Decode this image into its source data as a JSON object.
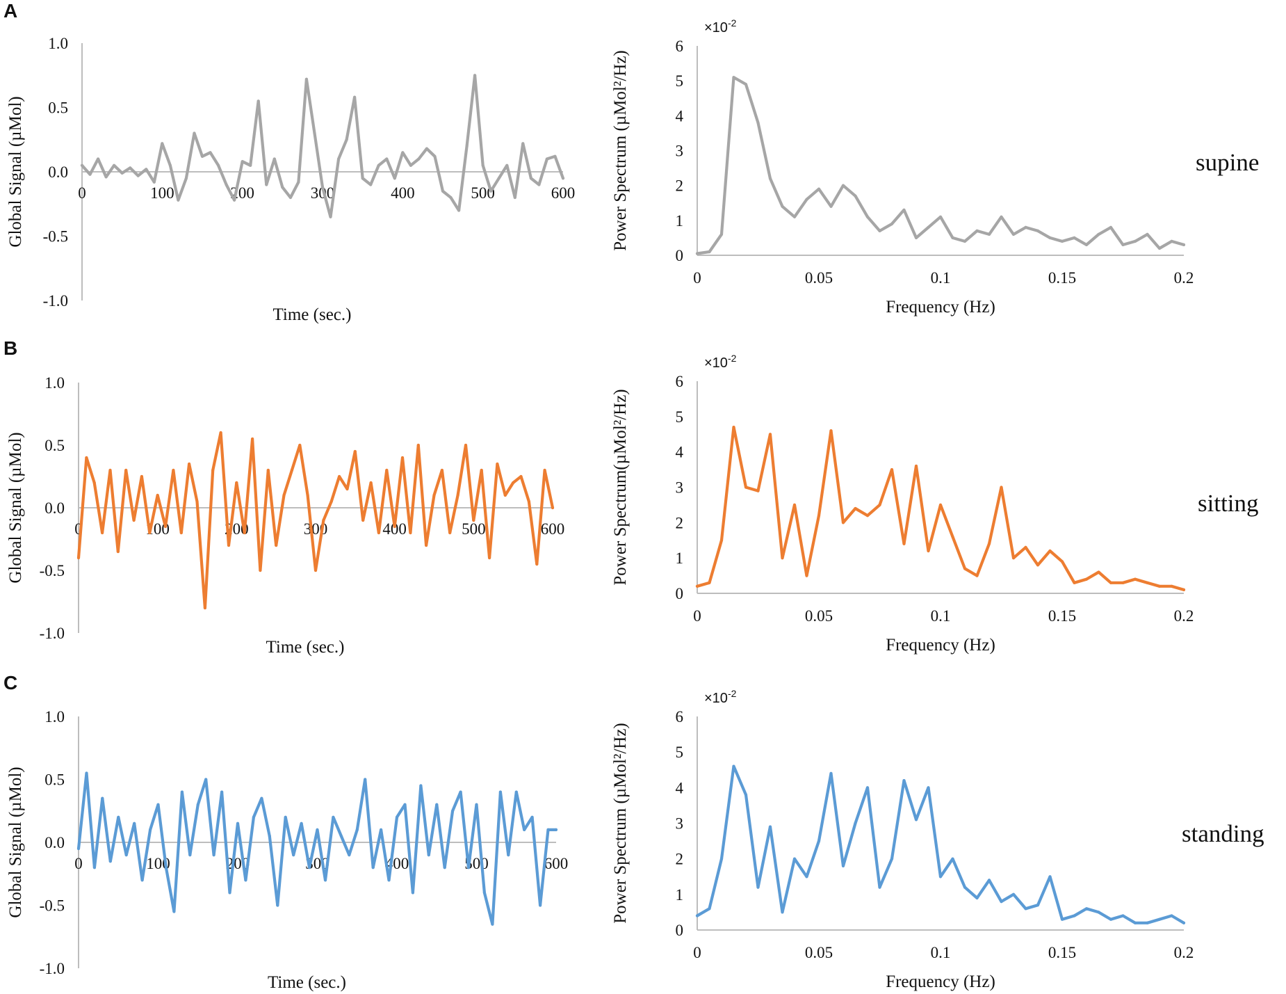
{
  "panels": [
    {
      "letter": "A",
      "condition": "supine",
      "color": "#a6a6a6"
    },
    {
      "letter": "B",
      "condition": "sitting",
      "color": "#ed7d31"
    },
    {
      "letter": "C",
      "condition": "standing",
      "color": "#5b9bd5"
    }
  ],
  "chart_data": [
    {
      "type": "line",
      "panel": "A",
      "condition": "supine",
      "xlabel": "Time (sec.)",
      "ylabel": "Global Signal (µMol)",
      "xlim": [
        0,
        600
      ],
      "ylim": [
        -1.0,
        1.0
      ],
      "xticks": [
        "0",
        "100",
        "200",
        "300",
        "400",
        "500",
        "600"
      ],
      "yticks": [
        "1.0",
        "0.5",
        "0.0",
        "-0.5",
        "-1.0"
      ],
      "color": "#a6a6a6",
      "x": [
        0,
        10,
        20,
        30,
        40,
        50,
        60,
        70,
        80,
        90,
        100,
        110,
        120,
        130,
        140,
        150,
        160,
        170,
        180,
        190,
        200,
        210,
        220,
        230,
        240,
        250,
        260,
        270,
        280,
        290,
        300,
        310,
        320,
        330,
        340,
        350,
        360,
        370,
        380,
        390,
        400,
        410,
        420,
        430,
        440,
        450,
        460,
        470,
        480,
        490,
        500,
        510,
        520,
        530,
        540,
        550,
        560,
        570,
        580,
        590,
        600
      ],
      "values": [
        0.05,
        -0.02,
        0.1,
        -0.04,
        0.05,
        -0.01,
        0.03,
        -0.03,
        0.02,
        -0.08,
        0.22,
        0.05,
        -0.22,
        -0.05,
        0.3,
        0.12,
        0.15,
        0.05,
        -0.1,
        -0.22,
        0.08,
        0.05,
        0.55,
        -0.1,
        0.1,
        -0.12,
        -0.2,
        -0.08,
        0.72,
        0.3,
        -0.12,
        -0.35,
        0.1,
        0.25,
        0.58,
        -0.05,
        -0.1,
        0.05,
        0.1,
        -0.05,
        0.15,
        0.05,
        0.1,
        0.18,
        0.12,
        -0.15,
        -0.2,
        -0.3,
        0.2,
        0.75,
        0.05,
        -0.15,
        -0.05,
        0.05,
        -0.2,
        0.22,
        -0.05,
        -0.1,
        0.1,
        0.12,
        -0.05
      ]
    },
    {
      "type": "line",
      "panel": "A",
      "condition": "supine",
      "xlabel": "Frequency (Hz)",
      "ylabel": "Power Spectrum (µMol²/Hz)",
      "multiplier": "×10",
      "multiplier_exp": "-2",
      "xlim": [
        0,
        0.2
      ],
      "ylim": [
        0,
        6
      ],
      "xticks": [
        "0",
        "0.05",
        "0.1",
        "0.15",
        "0.2"
      ],
      "yticks": [
        "0",
        "1",
        "2",
        "3",
        "4",
        "5",
        "6"
      ],
      "color": "#a6a6a6",
      "x": [
        0,
        0.005,
        0.01,
        0.015,
        0.02,
        0.025,
        0.03,
        0.035,
        0.04,
        0.045,
        0.05,
        0.055,
        0.06,
        0.065,
        0.07,
        0.075,
        0.08,
        0.085,
        0.09,
        0.095,
        0.1,
        0.105,
        0.11,
        0.115,
        0.12,
        0.125,
        0.13,
        0.135,
        0.14,
        0.145,
        0.15,
        0.155,
        0.16,
        0.165,
        0.17,
        0.175,
        0.18,
        0.185,
        0.19,
        0.195,
        0.2
      ],
      "values": [
        0.05,
        0.1,
        0.6,
        5.1,
        4.9,
        3.8,
        2.2,
        1.4,
        1.1,
        1.6,
        1.9,
        1.4,
        2.0,
        1.7,
        1.1,
        0.7,
        0.9,
        1.3,
        0.5,
        0.8,
        1.1,
        0.5,
        0.4,
        0.7,
        0.6,
        1.1,
        0.6,
        0.8,
        0.7,
        0.5,
        0.4,
        0.5,
        0.3,
        0.6,
        0.8,
        0.3,
        0.4,
        0.6,
        0.2,
        0.4,
        0.3
      ]
    },
    {
      "type": "line",
      "panel": "B",
      "condition": "sitting",
      "xlabel": "Time (sec.)",
      "ylabel": "Global Signal (µMol)",
      "xlim": [
        0,
        600
      ],
      "ylim": [
        -1.0,
        1.0
      ],
      "xticks": [
        "0",
        "100",
        "200",
        "300",
        "400",
        "500",
        "600"
      ],
      "yticks": [
        "1.0",
        "0.5",
        "0.0",
        "-0.5",
        "-1.0"
      ],
      "color": "#ed7d31",
      "x": [
        0,
        10,
        20,
        30,
        40,
        50,
        60,
        70,
        80,
        90,
        100,
        110,
        120,
        130,
        140,
        150,
        160,
        170,
        180,
        190,
        200,
        210,
        220,
        230,
        240,
        250,
        260,
        270,
        280,
        290,
        300,
        310,
        320,
        330,
        340,
        350,
        360,
        370,
        380,
        390,
        400,
        410,
        420,
        430,
        440,
        450,
        460,
        470,
        480,
        490,
        500,
        510,
        520,
        530,
        540,
        550,
        560,
        570,
        580,
        590,
        600
      ],
      "values": [
        -0.4,
        0.4,
        0.2,
        -0.2,
        0.3,
        -0.35,
        0.3,
        -0.1,
        0.25,
        -0.2,
        0.1,
        -0.15,
        0.3,
        -0.2,
        0.35,
        0.05,
        -0.8,
        0.3,
        0.6,
        -0.3,
        0.2,
        -0.2,
        0.55,
        -0.5,
        0.3,
        -0.3,
        0.1,
        0.3,
        0.5,
        0.1,
        -0.5,
        -0.1,
        0.05,
        0.25,
        0.15,
        0.45,
        -0.1,
        0.2,
        -0.2,
        0.3,
        -0.15,
        0.4,
        -0.2,
        0.5,
        -0.3,
        0.1,
        0.3,
        -0.2,
        0.1,
        0.5,
        -0.1,
        0.3,
        -0.4,
        0.35,
        0.1,
        0.2,
        0.25,
        0.05,
        -0.45,
        0.3,
        0.0
      ]
    },
    {
      "type": "line",
      "panel": "B",
      "condition": "sitting",
      "xlabel": "Frequency (Hz)",
      "ylabel": "Power Spectrum(µMol²/Hz)",
      "multiplier": "×10",
      "multiplier_exp": "-2",
      "xlim": [
        0,
        0.2
      ],
      "ylim": [
        0,
        6
      ],
      "xticks": [
        "0",
        "0.05",
        "0.1",
        "0.15",
        "0.2"
      ],
      "yticks": [
        "0",
        "1",
        "2",
        "3",
        "4",
        "5",
        "6"
      ],
      "color": "#ed7d31",
      "x": [
        0,
        0.005,
        0.01,
        0.015,
        0.02,
        0.025,
        0.03,
        0.035,
        0.04,
        0.045,
        0.05,
        0.055,
        0.06,
        0.065,
        0.07,
        0.075,
        0.08,
        0.085,
        0.09,
        0.095,
        0.1,
        0.105,
        0.11,
        0.115,
        0.12,
        0.125,
        0.13,
        0.135,
        0.14,
        0.145,
        0.15,
        0.155,
        0.16,
        0.165,
        0.17,
        0.175,
        0.18,
        0.185,
        0.19,
        0.195,
        0.2
      ],
      "values": [
        0.2,
        0.3,
        1.5,
        4.7,
        3.0,
        2.9,
        4.5,
        1.0,
        2.5,
        0.5,
        2.2,
        4.6,
        2.0,
        2.4,
        2.2,
        2.5,
        3.5,
        1.4,
        3.6,
        1.2,
        2.5,
        1.6,
        0.7,
        0.5,
        1.4,
        3.0,
        1.0,
        1.3,
        0.8,
        1.2,
        0.9,
        0.3,
        0.4,
        0.6,
        0.3,
        0.3,
        0.4,
        0.3,
        0.2,
        0.2,
        0.1
      ]
    },
    {
      "type": "line",
      "panel": "C",
      "condition": "standing",
      "xlabel": "Time (sec.)",
      "ylabel": "Global Signal (µMol)",
      "xlim": [
        0,
        600
      ],
      "ylim": [
        -1.0,
        1.0
      ],
      "xticks": [
        "0",
        "100",
        "200",
        "300",
        "400",
        "500",
        "600"
      ],
      "yticks": [
        "1.0",
        "0.5",
        "0.0",
        "-0.5",
        "-1.0"
      ],
      "color": "#5b9bd5",
      "x": [
        0,
        10,
        20,
        30,
        40,
        50,
        60,
        70,
        80,
        90,
        100,
        110,
        120,
        130,
        140,
        150,
        160,
        170,
        180,
        190,
        200,
        210,
        220,
        230,
        240,
        250,
        260,
        270,
        280,
        290,
        300,
        310,
        320,
        330,
        340,
        350,
        360,
        370,
        380,
        390,
        400,
        410,
        420,
        430,
        440,
        450,
        460,
        470,
        480,
        490,
        500,
        510,
        520,
        530,
        540,
        550,
        560,
        570,
        580,
        590,
        600
      ],
      "values": [
        -0.05,
        0.55,
        -0.2,
        0.35,
        -0.15,
        0.2,
        -0.1,
        0.15,
        -0.3,
        0.1,
        0.3,
        -0.2,
        -0.55,
        0.4,
        -0.1,
        0.3,
        0.5,
        -0.1,
        0.4,
        -0.4,
        0.15,
        -0.3,
        0.2,
        0.35,
        0.05,
        -0.5,
        0.2,
        -0.1,
        0.15,
        -0.2,
        0.1,
        -0.3,
        0.2,
        0.05,
        -0.1,
        0.1,
        0.5,
        -0.2,
        0.1,
        -0.3,
        0.2,
        0.3,
        -0.4,
        0.45,
        -0.1,
        0.3,
        -0.2,
        0.25,
        0.4,
        -0.2,
        0.3,
        -0.4,
        -0.65,
        0.4,
        -0.1,
        0.4,
        0.1,
        0.2,
        -0.5,
        0.1,
        0.1
      ]
    },
    {
      "type": "line",
      "panel": "C",
      "condition": "standing",
      "xlabel": "Frequency (Hz)",
      "ylabel": "Power Spectrum (µMol²/Hz)",
      "multiplier": "×10",
      "multiplier_exp": "-2",
      "xlim": [
        0,
        0.2
      ],
      "ylim": [
        0,
        6
      ],
      "xticks": [
        "0",
        "0.05",
        "0.1",
        "0.15",
        "0.2"
      ],
      "yticks": [
        "0",
        "1",
        "2",
        "3",
        "4",
        "5",
        "6"
      ],
      "color": "#5b9bd5",
      "x": [
        0,
        0.005,
        0.01,
        0.015,
        0.02,
        0.025,
        0.03,
        0.035,
        0.04,
        0.045,
        0.05,
        0.055,
        0.06,
        0.065,
        0.07,
        0.075,
        0.08,
        0.085,
        0.09,
        0.095,
        0.1,
        0.105,
        0.11,
        0.115,
        0.12,
        0.125,
        0.13,
        0.135,
        0.14,
        0.145,
        0.15,
        0.155,
        0.16,
        0.165,
        0.17,
        0.175,
        0.18,
        0.185,
        0.19,
        0.195,
        0.2
      ],
      "values": [
        0.4,
        0.6,
        2.0,
        4.6,
        3.8,
        1.2,
        2.9,
        0.5,
        2.0,
        1.5,
        2.5,
        4.4,
        1.8,
        3.0,
        4.0,
        1.2,
        2.0,
        4.2,
        3.1,
        4.0,
        1.5,
        2.0,
        1.2,
        0.9,
        1.4,
        0.8,
        1.0,
        0.6,
        0.7,
        1.5,
        0.3,
        0.4,
        0.6,
        0.5,
        0.3,
        0.4,
        0.2,
        0.2,
        0.3,
        0.4,
        0.2
      ]
    }
  ]
}
